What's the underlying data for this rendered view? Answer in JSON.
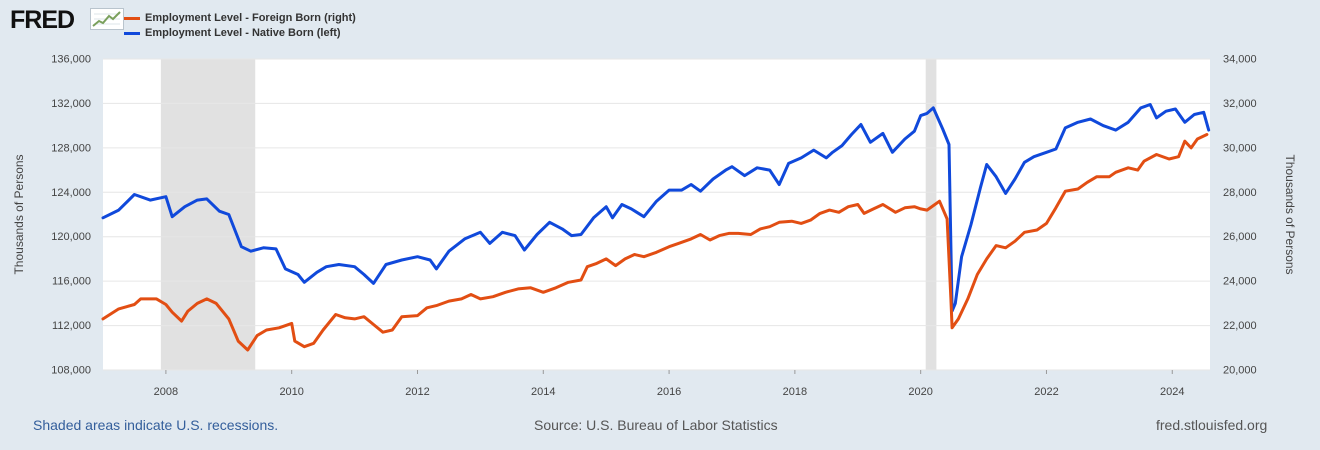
{
  "brand": {
    "logo_text": "FRED"
  },
  "legend": {
    "foreign": {
      "label": "Employment Level - Foreign Born (right)",
      "color": "#e24e13"
    },
    "native": {
      "label": "Employment Level - Native Born (left)",
      "color": "#1049db"
    }
  },
  "footer": {
    "recession_note": "Shaded areas indicate U.S. recessions.",
    "source": "Source: U.S. Bureau of Labor Statistics",
    "url": "fred.stlouisfed.org"
  },
  "chart_data": {
    "type": "line",
    "title": "",
    "xlabel": "",
    "x_range": [
      2007.0,
      2024.6
    ],
    "x_ticks": [
      2008,
      2010,
      2012,
      2014,
      2016,
      2018,
      2020,
      2022,
      2024
    ],
    "x_tick_labels": [
      "2008",
      "2010",
      "2012",
      "2014",
      "2016",
      "2018",
      "2020",
      "2022",
      "2024"
    ],
    "left_axis": {
      "label": "Thousands of Persons",
      "ylim": [
        108000,
        136000
      ],
      "ticks": [
        108000,
        112000,
        116000,
        120000,
        124000,
        128000,
        132000,
        136000
      ],
      "tick_labels": [
        "108,000",
        "112,000",
        "116,000",
        "120,000",
        "124,000",
        "128,000",
        "132,000",
        "136,000"
      ]
    },
    "right_axis": {
      "label": "Thousands of Persons",
      "ylim": [
        20000,
        34000
      ],
      "ticks": [
        20000,
        22000,
        24000,
        26000,
        28000,
        30000,
        32000,
        34000
      ],
      "tick_labels": [
        "20,000",
        "22,000",
        "24,000",
        "26,000",
        "28,000",
        "30,000",
        "32,000",
        "34,000"
      ]
    },
    "recessions": [
      [
        2007.92,
        2009.42
      ],
      [
        2020.08,
        2020.25
      ]
    ],
    "series": [
      {
        "name": "Employment Level - Native Born (left)",
        "axis": "left",
        "color": "#1049db",
        "points": [
          [
            2007.0,
            121700
          ],
          [
            2007.25,
            122400
          ],
          [
            2007.5,
            123800
          ],
          [
            2007.75,
            123300
          ],
          [
            2008.0,
            123600
          ],
          [
            2008.1,
            121800
          ],
          [
            2008.3,
            122700
          ],
          [
            2008.5,
            123300
          ],
          [
            2008.65,
            123400
          ],
          [
            2008.85,
            122300
          ],
          [
            2009.0,
            122000
          ],
          [
            2009.2,
            119100
          ],
          [
            2009.35,
            118700
          ],
          [
            2009.55,
            119000
          ],
          [
            2009.75,
            118900
          ],
          [
            2009.9,
            117100
          ],
          [
            2010.1,
            116600
          ],
          [
            2010.2,
            115900
          ],
          [
            2010.4,
            116800
          ],
          [
            2010.55,
            117300
          ],
          [
            2010.75,
            117500
          ],
          [
            2011.0,
            117300
          ],
          [
            2011.15,
            116600
          ],
          [
            2011.3,
            115800
          ],
          [
            2011.5,
            117500
          ],
          [
            2011.75,
            117900
          ],
          [
            2012.0,
            118200
          ],
          [
            2012.2,
            117900
          ],
          [
            2012.3,
            117100
          ],
          [
            2012.5,
            118700
          ],
          [
            2012.75,
            119800
          ],
          [
            2013.0,
            120400
          ],
          [
            2013.15,
            119400
          ],
          [
            2013.35,
            120400
          ],
          [
            2013.55,
            120100
          ],
          [
            2013.7,
            118800
          ],
          [
            2013.9,
            120200
          ],
          [
            2014.1,
            121300
          ],
          [
            2014.3,
            120700
          ],
          [
            2014.45,
            120100
          ],
          [
            2014.6,
            120200
          ],
          [
            2014.8,
            121700
          ],
          [
            2015.0,
            122700
          ],
          [
            2015.1,
            121700
          ],
          [
            2015.25,
            122900
          ],
          [
            2015.4,
            122500
          ],
          [
            2015.6,
            121800
          ],
          [
            2015.8,
            123200
          ],
          [
            2016.0,
            124200
          ],
          [
            2016.2,
            124200
          ],
          [
            2016.35,
            124700
          ],
          [
            2016.5,
            124100
          ],
          [
            2016.7,
            125200
          ],
          [
            2016.9,
            126000
          ],
          [
            2017.0,
            126300
          ],
          [
            2017.2,
            125500
          ],
          [
            2017.4,
            126200
          ],
          [
            2017.6,
            126000
          ],
          [
            2017.75,
            124700
          ],
          [
            2017.9,
            126600
          ],
          [
            2018.1,
            127100
          ],
          [
            2018.3,
            127800
          ],
          [
            2018.5,
            127100
          ],
          [
            2018.6,
            127600
          ],
          [
            2018.75,
            128200
          ],
          [
            2018.9,
            129200
          ],
          [
            2019.05,
            130100
          ],
          [
            2019.2,
            128500
          ],
          [
            2019.4,
            129300
          ],
          [
            2019.55,
            127600
          ],
          [
            2019.75,
            128800
          ],
          [
            2019.9,
            129500
          ],
          [
            2020.0,
            130900
          ],
          [
            2020.1,
            131100
          ],
          [
            2020.2,
            131600
          ],
          [
            2020.35,
            129700
          ],
          [
            2020.45,
            128300
          ],
          [
            2020.5,
            113300
          ],
          [
            2020.55,
            114000
          ],
          [
            2020.65,
            118200
          ],
          [
            2020.8,
            121100
          ],
          [
            2020.95,
            124400
          ],
          [
            2021.05,
            126500
          ],
          [
            2021.2,
            125400
          ],
          [
            2021.35,
            123900
          ],
          [
            2021.5,
            125200
          ],
          [
            2021.65,
            126700
          ],
          [
            2021.8,
            127200
          ],
          [
            2022.0,
            127600
          ],
          [
            2022.15,
            127900
          ],
          [
            2022.3,
            129800
          ],
          [
            2022.5,
            130300
          ],
          [
            2022.7,
            130600
          ],
          [
            2022.9,
            130000
          ],
          [
            2023.1,
            129600
          ],
          [
            2023.3,
            130300
          ],
          [
            2023.5,
            131600
          ],
          [
            2023.65,
            131900
          ],
          [
            2023.75,
            130700
          ],
          [
            2023.9,
            131300
          ],
          [
            2024.05,
            131500
          ],
          [
            2024.2,
            130300
          ],
          [
            2024.35,
            131000
          ],
          [
            2024.5,
            131200
          ],
          [
            2024.58,
            129600
          ]
        ]
      },
      {
        "name": "Employment Level - Foreign Born (right)",
        "axis": "right",
        "color": "#e24e13",
        "points": [
          [
            2007.0,
            22300
          ],
          [
            2007.25,
            22750
          ],
          [
            2007.5,
            22950
          ],
          [
            2007.6,
            23200
          ],
          [
            2007.85,
            23200
          ],
          [
            2008.0,
            22950
          ],
          [
            2008.1,
            22600
          ],
          [
            2008.25,
            22200
          ],
          [
            2008.35,
            22650
          ],
          [
            2008.5,
            23000
          ],
          [
            2008.65,
            23200
          ],
          [
            2008.8,
            23000
          ],
          [
            2009.0,
            22300
          ],
          [
            2009.15,
            21300
          ],
          [
            2009.3,
            20900
          ],
          [
            2009.45,
            21550
          ],
          [
            2009.6,
            21800
          ],
          [
            2009.8,
            21900
          ],
          [
            2010.0,
            22100
          ],
          [
            2010.05,
            21300
          ],
          [
            2010.2,
            21050
          ],
          [
            2010.35,
            21200
          ],
          [
            2010.5,
            21800
          ],
          [
            2010.7,
            22500
          ],
          [
            2010.85,
            22350
          ],
          [
            2011.0,
            22300
          ],
          [
            2011.15,
            22400
          ],
          [
            2011.3,
            22050
          ],
          [
            2011.45,
            21700
          ],
          [
            2011.6,
            21800
          ],
          [
            2011.75,
            22400
          ],
          [
            2012.0,
            22450
          ],
          [
            2012.15,
            22800
          ],
          [
            2012.3,
            22900
          ],
          [
            2012.5,
            23100
          ],
          [
            2012.7,
            23200
          ],
          [
            2012.85,
            23400
          ],
          [
            2013.0,
            23200
          ],
          [
            2013.2,
            23300
          ],
          [
            2013.4,
            23500
          ],
          [
            2013.6,
            23650
          ],
          [
            2013.8,
            23700
          ],
          [
            2014.0,
            23500
          ],
          [
            2014.2,
            23700
          ],
          [
            2014.4,
            23950
          ],
          [
            2014.6,
            24050
          ],
          [
            2014.7,
            24650
          ],
          [
            2014.85,
            24800
          ],
          [
            2015.0,
            25000
          ],
          [
            2015.15,
            24700
          ],
          [
            2015.3,
            25000
          ],
          [
            2015.45,
            25200
          ],
          [
            2015.6,
            25100
          ],
          [
            2015.8,
            25300
          ],
          [
            2016.0,
            25550
          ],
          [
            2016.15,
            25700
          ],
          [
            2016.35,
            25900
          ],
          [
            2016.5,
            26100
          ],
          [
            2016.65,
            25850
          ],
          [
            2016.8,
            26050
          ],
          [
            2016.95,
            26150
          ],
          [
            2017.1,
            26150
          ],
          [
            2017.3,
            26100
          ],
          [
            2017.45,
            26350
          ],
          [
            2017.6,
            26450
          ],
          [
            2017.75,
            26650
          ],
          [
            2017.95,
            26700
          ],
          [
            2018.1,
            26600
          ],
          [
            2018.25,
            26750
          ],
          [
            2018.4,
            27050
          ],
          [
            2018.55,
            27200
          ],
          [
            2018.7,
            27100
          ],
          [
            2018.85,
            27350
          ],
          [
            2019.0,
            27450
          ],
          [
            2019.1,
            27050
          ],
          [
            2019.25,
            27250
          ],
          [
            2019.4,
            27450
          ],
          [
            2019.6,
            27100
          ],
          [
            2019.75,
            27300
          ],
          [
            2019.9,
            27350
          ],
          [
            2020.0,
            27250
          ],
          [
            2020.1,
            27200
          ],
          [
            2020.2,
            27400
          ],
          [
            2020.3,
            27600
          ],
          [
            2020.42,
            26800
          ],
          [
            2020.48,
            23200
          ],
          [
            2020.5,
            21900
          ],
          [
            2020.6,
            22300
          ],
          [
            2020.75,
            23200
          ],
          [
            2020.9,
            24300
          ],
          [
            2021.05,
            25000
          ],
          [
            2021.2,
            25600
          ],
          [
            2021.35,
            25500
          ],
          [
            2021.5,
            25800
          ],
          [
            2021.65,
            26200
          ],
          [
            2021.85,
            26300
          ],
          [
            2022.0,
            26600
          ],
          [
            2022.15,
            27300
          ],
          [
            2022.3,
            28050
          ],
          [
            2022.5,
            28150
          ],
          [
            2022.65,
            28450
          ],
          [
            2022.8,
            28700
          ],
          [
            2023.0,
            28700
          ],
          [
            2023.1,
            28900
          ],
          [
            2023.3,
            29100
          ],
          [
            2023.45,
            29000
          ],
          [
            2023.55,
            29400
          ],
          [
            2023.75,
            29700
          ],
          [
            2023.95,
            29500
          ],
          [
            2024.1,
            29600
          ],
          [
            2024.2,
            30300
          ],
          [
            2024.3,
            30000
          ],
          [
            2024.4,
            30400
          ],
          [
            2024.55,
            30600
          ]
        ]
      }
    ]
  }
}
